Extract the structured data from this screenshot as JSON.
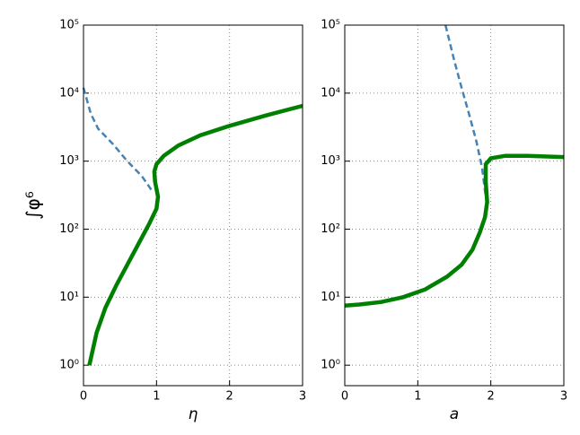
{
  "chart_data": [
    {
      "type": "line",
      "x_label": "η",
      "y_label": "∫φ⁶",
      "log_y": true,
      "grid": true,
      "xlim": [
        0,
        3
      ],
      "ylim": [
        0.5,
        100000
      ],
      "xticks": [
        0,
        1,
        2,
        3
      ],
      "yticks": [
        {
          "value": 1,
          "label": "10⁰"
        },
        {
          "value": 10,
          "label": "10¹"
        },
        {
          "value": 100,
          "label": "10²"
        },
        {
          "value": 1000,
          "label": "10³"
        },
        {
          "value": 10000,
          "label": "10⁴"
        },
        {
          "value": 100000,
          "label": "10⁵"
        }
      ],
      "series": [
        {
          "color": "#4682b4",
          "style": "dashed",
          "x": [
            0,
            0.1,
            0.2,
            0.4,
            0.6,
            0.8,
            0.95
          ],
          "values": [
            12000,
            5000,
            3000,
            1800,
            1000,
            600,
            350
          ]
        },
        {
          "color": "#008000",
          "style": "solid",
          "x": [
            0.08,
            0.18,
            0.3,
            0.45,
            0.6,
            0.75,
            0.9,
            1.0,
            1.02,
            0.98,
            0.97,
            1.0,
            1.1,
            1.3,
            1.6,
            2.0,
            2.5,
            3.0
          ],
          "values": [
            1,
            3,
            7,
            15,
            30,
            60,
            120,
            200,
            300,
            500,
            700,
            900,
            1200,
            1700,
            2400,
            3300,
            4700,
            6500
          ]
        }
      ]
    },
    {
      "type": "line",
      "x_label": "a",
      "log_y": true,
      "grid": true,
      "xlim": [
        0,
        3
      ],
      "ylim": [
        0.5,
        100000
      ],
      "xticks": [
        0,
        1,
        2,
        3
      ],
      "yticks": [
        {
          "value": 1,
          "label": "10⁰"
        },
        {
          "value": 10,
          "label": "10¹"
        },
        {
          "value": 100,
          "label": "10²"
        },
        {
          "value": 1000,
          "label": "10³"
        },
        {
          "value": 10000,
          "label": "10⁴"
        },
        {
          "value": 100000,
          "label": "10⁵"
        }
      ],
      "series": [
        {
          "color": "#4682b4",
          "style": "dashed",
          "x": [
            1.38,
            1.5,
            1.6,
            1.7,
            1.8,
            1.88,
            1.93
          ],
          "values": [
            100000,
            30000,
            12000,
            5000,
            2000,
            800,
            300
          ]
        },
        {
          "color": "#008000",
          "style": "solid",
          "x": [
            0,
            0.2,
            0.5,
            0.8,
            1.1,
            1.4,
            1.6,
            1.75,
            1.85,
            1.92,
            1.95,
            1.93,
            1.93,
            2.0,
            2.2,
            2.5,
            3.0
          ],
          "values": [
            7.5,
            7.8,
            8.5,
            10,
            13,
            20,
            30,
            50,
            90,
            150,
            250,
            500,
            900,
            1100,
            1200,
            1200,
            1150
          ]
        }
      ]
    }
  ]
}
